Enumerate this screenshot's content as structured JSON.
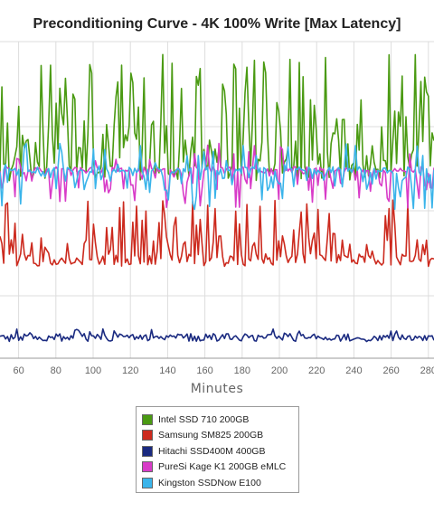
{
  "chart_data": {
    "type": "line",
    "title": "Preconditioning Curve - 4K 100% Write [Max Latency]",
    "xlabel": "Minutes",
    "ylabel": "",
    "xlim": [
      50,
      283
    ],
    "x_ticks": [
      60,
      80,
      100,
      120,
      140,
      160,
      180,
      200,
      220,
      240,
      260,
      280
    ],
    "grid": true,
    "legend_position": "bottom-center",
    "series": [
      {
        "name": "Intel SSD 710 200GB",
        "color": "#4a9a12",
        "level": 0.78,
        "spikes": [
          0.95,
          0.6,
          0.4
        ],
        "pattern": "high-volatile"
      },
      {
        "name": "Samsung SM825 200GB",
        "color": "#cc2a1e",
        "level": 0.36,
        "spikes": [
          0.6,
          0.35,
          0.2
        ],
        "pattern": "medium-volatile"
      },
      {
        "name": "Hitachi SSD400M 400GB",
        "color": "#1a2a80",
        "level": 0.04,
        "spikes": [
          0.03
        ],
        "pattern": "flat"
      },
      {
        "name": "PureSi Kage K1 200GB eMLC",
        "color": "#d83cc8",
        "level": 0.62,
        "spikes": [
          0.15,
          0.08
        ],
        "pattern": "dip"
      },
      {
        "name": "Kingston SSDNow E100",
        "color": "#3ab4ea",
        "level": 0.63,
        "spikes": [
          0.12,
          0.06
        ],
        "pattern": "dip"
      }
    ]
  }
}
